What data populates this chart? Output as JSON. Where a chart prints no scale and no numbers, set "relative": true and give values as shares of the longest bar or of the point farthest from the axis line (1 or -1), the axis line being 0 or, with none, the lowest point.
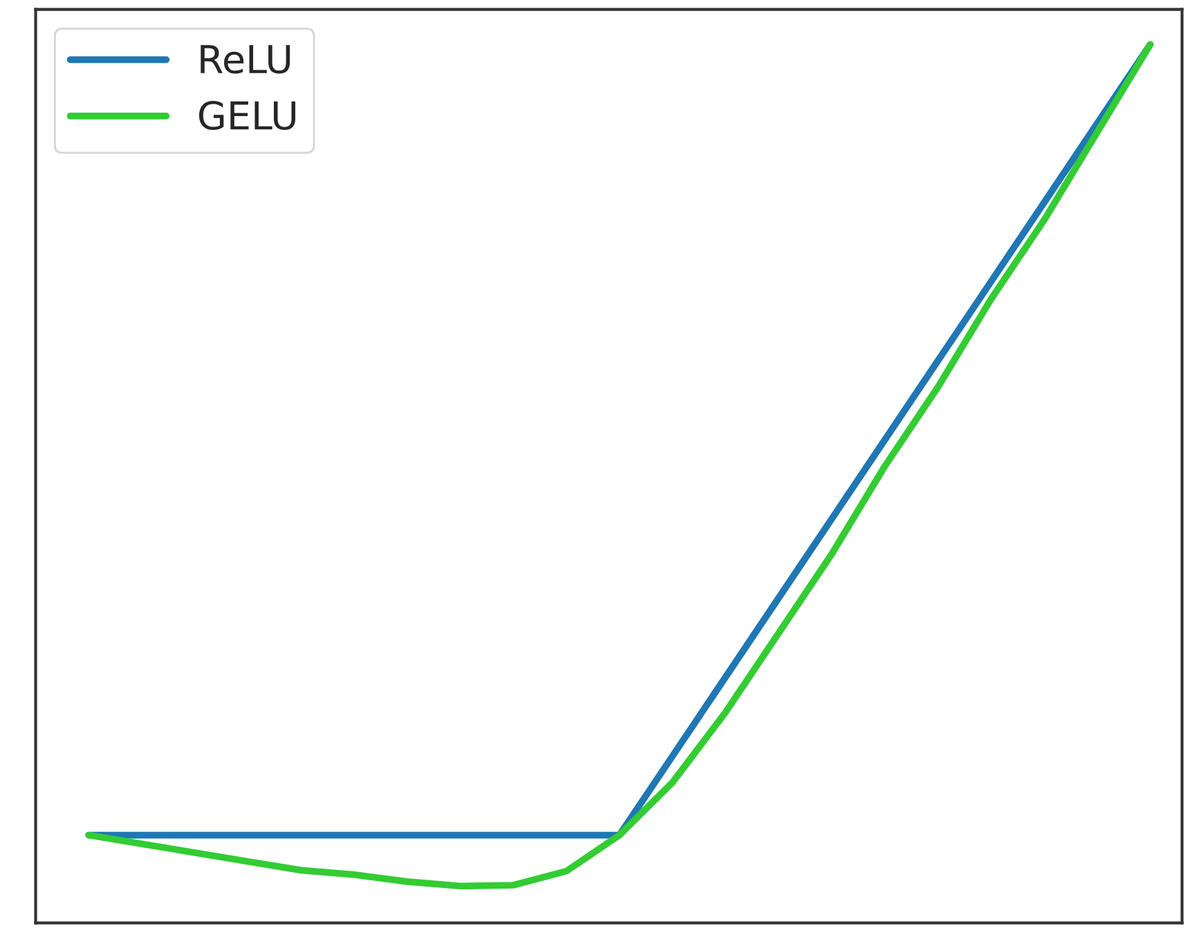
{
  "chart_data": {
    "type": "line",
    "relative": true,
    "legend": "top left",
    "grid": false,
    "marker": "none",
    "line_style": "solid",
    "categories": [
      null,
      null,
      null,
      null,
      null,
      null,
      null,
      null,
      null,
      null,
      null,
      null,
      null,
      null,
      null,
      null,
      null,
      null,
      null,
      null,
      null
    ],
    "series": [
      {
        "name": "ReLU",
        "color": "#1f77b4",
        "values": [
          0.1,
          0.1,
          0.1,
          0.1,
          0.1,
          0.1,
          0.1,
          0.1,
          0.1,
          0.1,
          0.1,
          0.19,
          0.28,
          0.37,
          0.46,
          0.55,
          0.64,
          0.73,
          0.82,
          0.91,
          1.0
        ]
      },
      {
        "name": "GELU",
        "color": "#33cc33",
        "values": [
          0.1,
          0.09,
          0.08,
          0.07,
          0.06,
          0.055,
          0.047,
          0.042,
          0.043,
          0.059,
          0.1,
          0.16,
          0.24,
          0.33,
          0.42,
          0.52,
          0.61,
          0.71,
          0.8,
          0.9,
          1.0
        ]
      }
    ]
  }
}
